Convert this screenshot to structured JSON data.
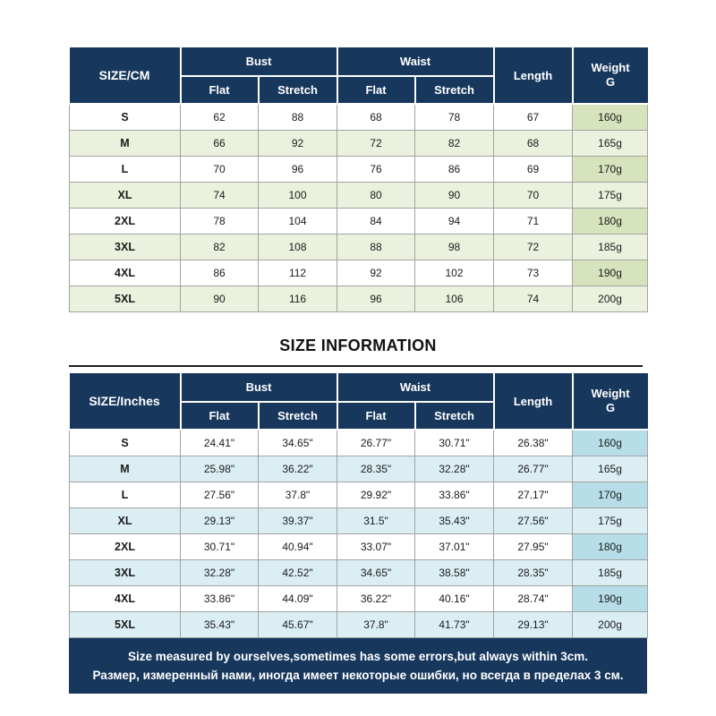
{
  "heading": "SIZE INFORMATION",
  "footer": {
    "line1": "Size measured by ourselves,sometimes has some errors,but always within 3cm.",
    "line2": "Размер, измеренный нами, иногда имеет некоторые ошибки, но всегда в пределах 3 см."
  },
  "colors": {
    "header_navy": "#17375D",
    "cm_stripe": "#EAF1DD",
    "cm_weight": "#D6E3BC",
    "in_stripe": "#DAEEF3",
    "in_weight": "#B7DDE8",
    "border_gray": "#A3A3A3",
    "divider_black": "#1C1C1C"
  },
  "chart_data": [
    {
      "type": "table",
      "title": "SIZE/CM",
      "header": {
        "corner": "SIZE/CM",
        "bust": "Bust",
        "waist": "Waist",
        "flat": "Flat",
        "stretch": "Stretch",
        "length": "Length",
        "weight": "Weight\nG"
      },
      "columns": [
        "SIZE/CM",
        "Bust Flat",
        "Bust Stretch",
        "Waist Flat",
        "Waist Stretch",
        "Length",
        "Weight G"
      ],
      "rows": [
        [
          "S",
          "62",
          "88",
          "68",
          "78",
          "67",
          "160g"
        ],
        [
          "M",
          "66",
          "92",
          "72",
          "82",
          "68",
          "165g"
        ],
        [
          "L",
          "70",
          "96",
          "76",
          "86",
          "69",
          "170g"
        ],
        [
          "XL",
          "74",
          "100",
          "80",
          "90",
          "70",
          "175g"
        ],
        [
          "2XL",
          "78",
          "104",
          "84",
          "94",
          "71",
          "180g"
        ],
        [
          "3XL",
          "82",
          "108",
          "88",
          "98",
          "72",
          "185g"
        ],
        [
          "4XL",
          "86",
          "112",
          "92",
          "102",
          "73",
          "190g"
        ],
        [
          "5XL",
          "90",
          "116",
          "96",
          "106",
          "74",
          "200g"
        ]
      ]
    },
    {
      "type": "table",
      "title": "SIZE/Inches",
      "header": {
        "corner": "SIZE/Inches",
        "bust": "Bust",
        "waist": "Waist",
        "flat": "Flat",
        "stretch": "Stretch",
        "length": "Length",
        "weight": "Weight\nG"
      },
      "columns": [
        "SIZE/Inches",
        "Bust Flat",
        "Bust Stretch",
        "Waist Flat",
        "Waist Stretch",
        "Length",
        "Weight G"
      ],
      "rows": [
        [
          "S",
          "24.41\"",
          "34.65\"",
          "26.77\"",
          "30.71\"",
          "26.38\"",
          "160g"
        ],
        [
          "M",
          "25.98\"",
          "36.22\"",
          "28.35\"",
          "32.28\"",
          "26.77\"",
          "165g"
        ],
        [
          "L",
          "27.56\"",
          "37.8\"",
          "29.92\"",
          "33.86\"",
          "27.17\"",
          "170g"
        ],
        [
          "XL",
          "29.13\"",
          "39.37\"",
          "31.5\"",
          "35.43\"",
          "27.56\"",
          "175g"
        ],
        [
          "2XL",
          "30.71\"",
          "40.94\"",
          "33.07\"",
          "37.01\"",
          "27.95\"",
          "180g"
        ],
        [
          "3XL",
          "32.28\"",
          "42.52\"",
          "34.65\"",
          "38.58\"",
          "28.35\"",
          "185g"
        ],
        [
          "4XL",
          "33.86\"",
          "44.09\"",
          "36.22\"",
          "40.16\"",
          "28.74\"",
          "190g"
        ],
        [
          "5XL",
          "35.43\"",
          "45.67\"",
          "37.8\"",
          "41.73\"",
          "29.13\"",
          "200g"
        ]
      ]
    }
  ]
}
